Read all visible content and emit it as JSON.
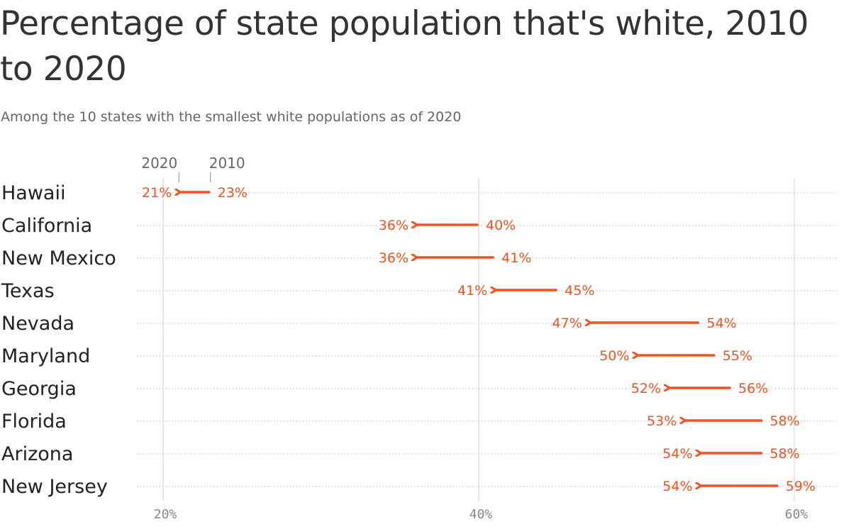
{
  "title": "Percentage of state population that's white, 2010 to 2020",
  "subtitle": "Among the 10 states with the smallest white populations as of 2020",
  "chart_data": {
    "type": "arrow-dot",
    "series_keys": [
      "2020",
      "2010"
    ],
    "xlim": [
      20,
      60
    ],
    "x_ticks": [
      20,
      40,
      60
    ],
    "x_tick_labels": [
      "20%",
      "40%",
      "60%"
    ],
    "accent_color": "#f4511e",
    "gridline_color": "#d9d9d9",
    "rows": [
      {
        "state": "Hawaii",
        "v2010": 23,
        "v2020": 21,
        "label2010": "23%",
        "label2020": "21%"
      },
      {
        "state": "California",
        "v2010": 40,
        "v2020": 36,
        "label2010": "40%",
        "label2020": "36%"
      },
      {
        "state": "New Mexico",
        "v2010": 41,
        "v2020": 36,
        "label2010": "41%",
        "label2020": "36%"
      },
      {
        "state": "Texas",
        "v2010": 45,
        "v2020": 41,
        "label2010": "45%",
        "label2020": "41%"
      },
      {
        "state": "Nevada",
        "v2010": 54,
        "v2020": 47,
        "label2010": "54%",
        "label2020": "47%"
      },
      {
        "state": "Maryland",
        "v2010": 55,
        "v2020": 50,
        "label2010": "55%",
        "label2020": "50%"
      },
      {
        "state": "Georgia",
        "v2010": 56,
        "v2020": 52,
        "label2010": "56%",
        "label2020": "52%"
      },
      {
        "state": "Florida",
        "v2010": 58,
        "v2020": 53,
        "label2010": "58%",
        "label2020": "53%"
      },
      {
        "state": "Arizona",
        "v2010": 58,
        "v2020": 54,
        "label2010": "58%",
        "label2020": "54%"
      },
      {
        "state": "New Jersey",
        "v2010": 59,
        "v2020": 54,
        "label2010": "59%",
        "label2020": "54%"
      }
    ]
  }
}
